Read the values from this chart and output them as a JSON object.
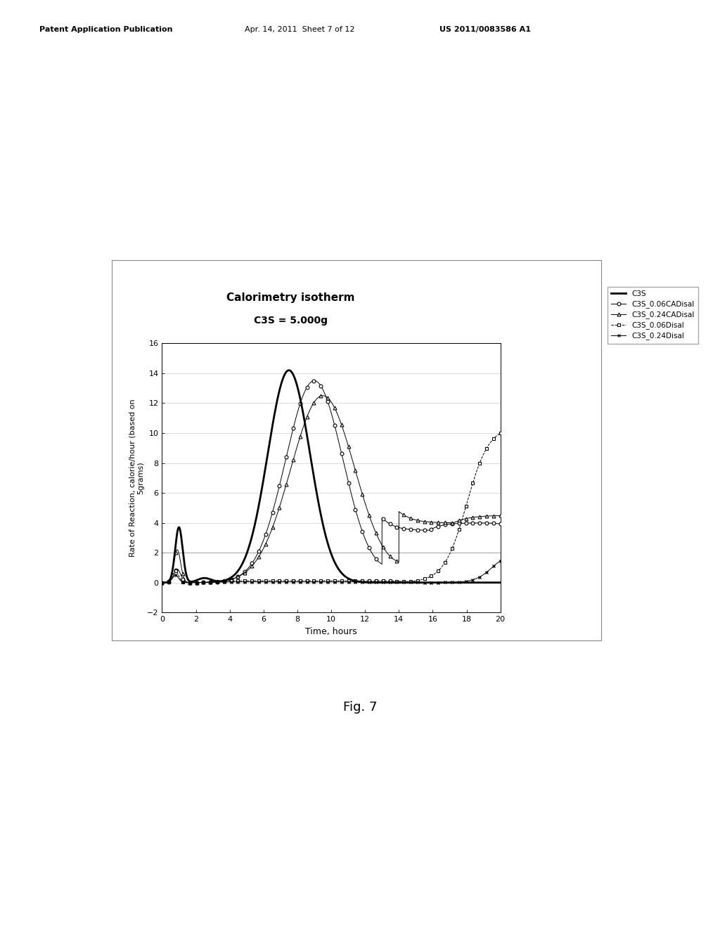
{
  "title_line1": "Calorimetry isotherm",
  "title_line2": "C3S = 5.000g",
  "xlabel": "Time, hours",
  "ylabel": "Rate of Reaction, calorie/hour (based on\n5grams)",
  "xlim": [
    0,
    20
  ],
  "ylim": [
    -2,
    16
  ],
  "xticks": [
    0,
    2,
    4,
    6,
    8,
    10,
    12,
    14,
    16,
    18,
    20
  ],
  "yticks": [
    -2,
    0,
    2,
    4,
    6,
    8,
    10,
    12,
    14,
    16
  ],
  "legend_labels": [
    "C3S",
    "C3S_0.06CADisal",
    "C3S_0.24CADisal",
    "C3S_0.06Disal",
    "C3S_0.24Disal"
  ],
  "fig_label": "Fig. 7",
  "bg_color": "#ffffff",
  "header_left": "Patent Application Publication",
  "header_mid": "Apr. 14, 2011  Sheet 7 of 12",
  "header_right": "US 2011/0083586 A1"
}
